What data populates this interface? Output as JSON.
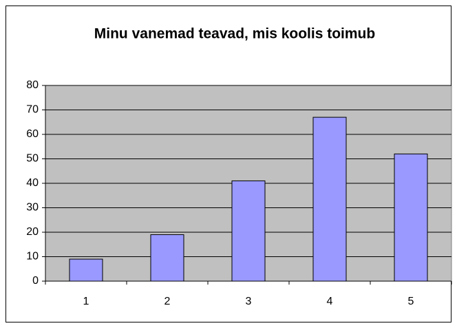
{
  "chart_data": {
    "type": "bar",
    "title": "Minu vanemad teavad, mis koolis toimub",
    "categories": [
      "1",
      "2",
      "3",
      "4",
      "5"
    ],
    "values": [
      9,
      19,
      41,
      67,
      52
    ],
    "color": "#9999ff",
    "ylim": [
      0,
      80
    ],
    "yticks": [
      0,
      10,
      20,
      30,
      40,
      50,
      60,
      70,
      80
    ],
    "grid": true
  }
}
